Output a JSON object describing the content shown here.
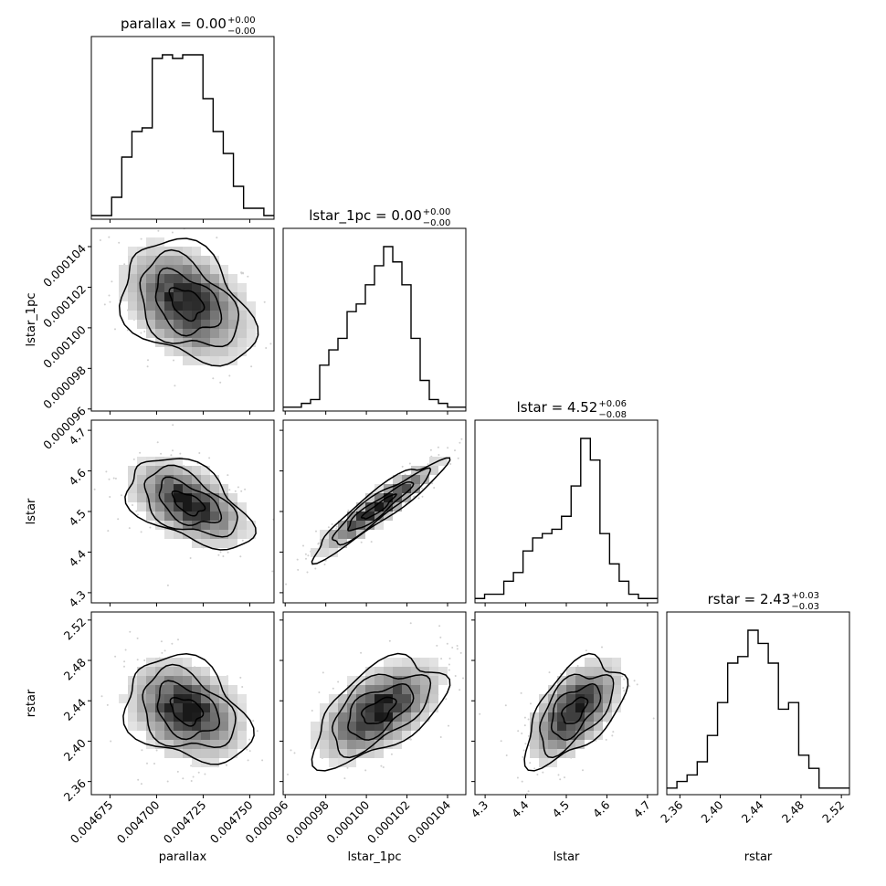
{
  "chart_data": {
    "type": "corner",
    "parameters": [
      "parallax",
      "lstar_1pc",
      "lstar",
      "rstar"
    ],
    "axis_labels": [
      "parallax",
      "lstar_1pc",
      "lstar",
      "rstar"
    ],
    "titles": [
      {
        "text": "parallax = 0.00",
        "upper": "+0.00",
        "lower": "−0.00"
      },
      {
        "text": "lstar_1pc = 0.00",
        "upper": "+0.00",
        "lower": "−0.00"
      },
      {
        "text": "lstar = 4.52",
        "upper": "+0.06",
        "lower": "−0.08"
      },
      {
        "text": "rstar = 2.43",
        "upper": "+0.03",
        "lower": "−0.03"
      }
    ],
    "ranges": [
      [
        0.004665,
        0.004763
      ],
      [
        9.59e-05,
        0.0001049
      ],
      [
        4.275,
        4.725
      ],
      [
        2.347,
        2.528
      ]
    ],
    "ticks": [
      [
        0.004675,
        0.0047,
        0.004725,
        0.00475
      ],
      [
        9.6e-05,
        9.8e-05,
        0.0001,
        0.000102,
        0.000104
      ],
      [
        4.3,
        4.4,
        4.5,
        4.6,
        4.7
      ],
      [
        2.36,
        2.4,
        2.44,
        2.48,
        2.52
      ]
    ],
    "tick_labels": [
      [
        "0.004675",
        "0.004700",
        "0.004725",
        "0.004750"
      ],
      [
        "0.000096",
        "0.000098",
        "0.000100",
        "0.000102",
        "0.000104"
      ],
      [
        "4.3",
        "4.4",
        "4.5",
        "4.6",
        "4.7"
      ],
      [
        "2.36",
        "2.40",
        "2.44",
        "2.48",
        "2.52"
      ]
    ],
    "histograms": [
      {
        "parameter": "parallax",
        "counts": [
          1,
          1,
          6,
          17,
          24,
          25,
          44,
          45,
          44,
          45,
          45,
          33,
          24,
          18,
          9,
          3,
          3,
          1
        ]
      },
      {
        "parameter": "lstar_1pc",
        "counts": [
          1,
          1,
          2,
          3,
          12,
          16,
          19,
          26,
          28,
          33,
          38,
          43,
          39,
          33,
          19,
          8,
          3,
          2,
          1,
          1
        ]
      },
      {
        "parameter": "lstar",
        "counts": [
          1,
          2,
          2,
          5,
          7,
          12,
          15,
          16,
          17,
          20,
          27,
          38,
          33,
          16,
          9,
          5,
          2,
          1,
          1
        ]
      },
      {
        "parameter": "rstar",
        "counts": [
          1,
          2,
          3,
          5,
          9,
          14,
          20,
          21,
          25,
          23,
          20,
          13,
          14,
          6,
          4,
          1,
          1,
          1
        ]
      }
    ],
    "joint_2d": [
      {
        "x": "parallax",
        "y": "lstar_1pc",
        "center": [
          0.004716,
          0.0001012
        ],
        "sigma": [
          1.75e-05,
          1.5e-06
        ],
        "rho": -0.35
      },
      {
        "x": "parallax",
        "y": "lstar",
        "center": [
          0.004717,
          4.52
        ],
        "sigma": [
          1.65e-05,
          0.055
        ],
        "rho": -0.5
      },
      {
        "x": "lstar_1pc",
        "y": "lstar",
        "center": [
          0.0001006,
          4.51
        ],
        "sigma": [
          1.6e-06,
          0.06
        ],
        "rho": 0.93
      },
      {
        "x": "parallax",
        "y": "rstar",
        "center": [
          0.004716,
          2.43
        ],
        "sigma": [
          1.65e-05,
          0.026
        ],
        "rho": -0.3
      },
      {
        "x": "lstar_1pc",
        "y": "rstar",
        "center": [
          0.0001006,
          2.43
        ],
        "sigma": [
          1.6e-06,
          0.026
        ],
        "rho": 0.55
      },
      {
        "x": "lstar",
        "y": "rstar",
        "center": [
          4.52,
          2.43
        ],
        "sigma": [
          0.06,
          0.026
        ],
        "rho": 0.55
      }
    ],
    "grid": false,
    "legend": "none"
  }
}
